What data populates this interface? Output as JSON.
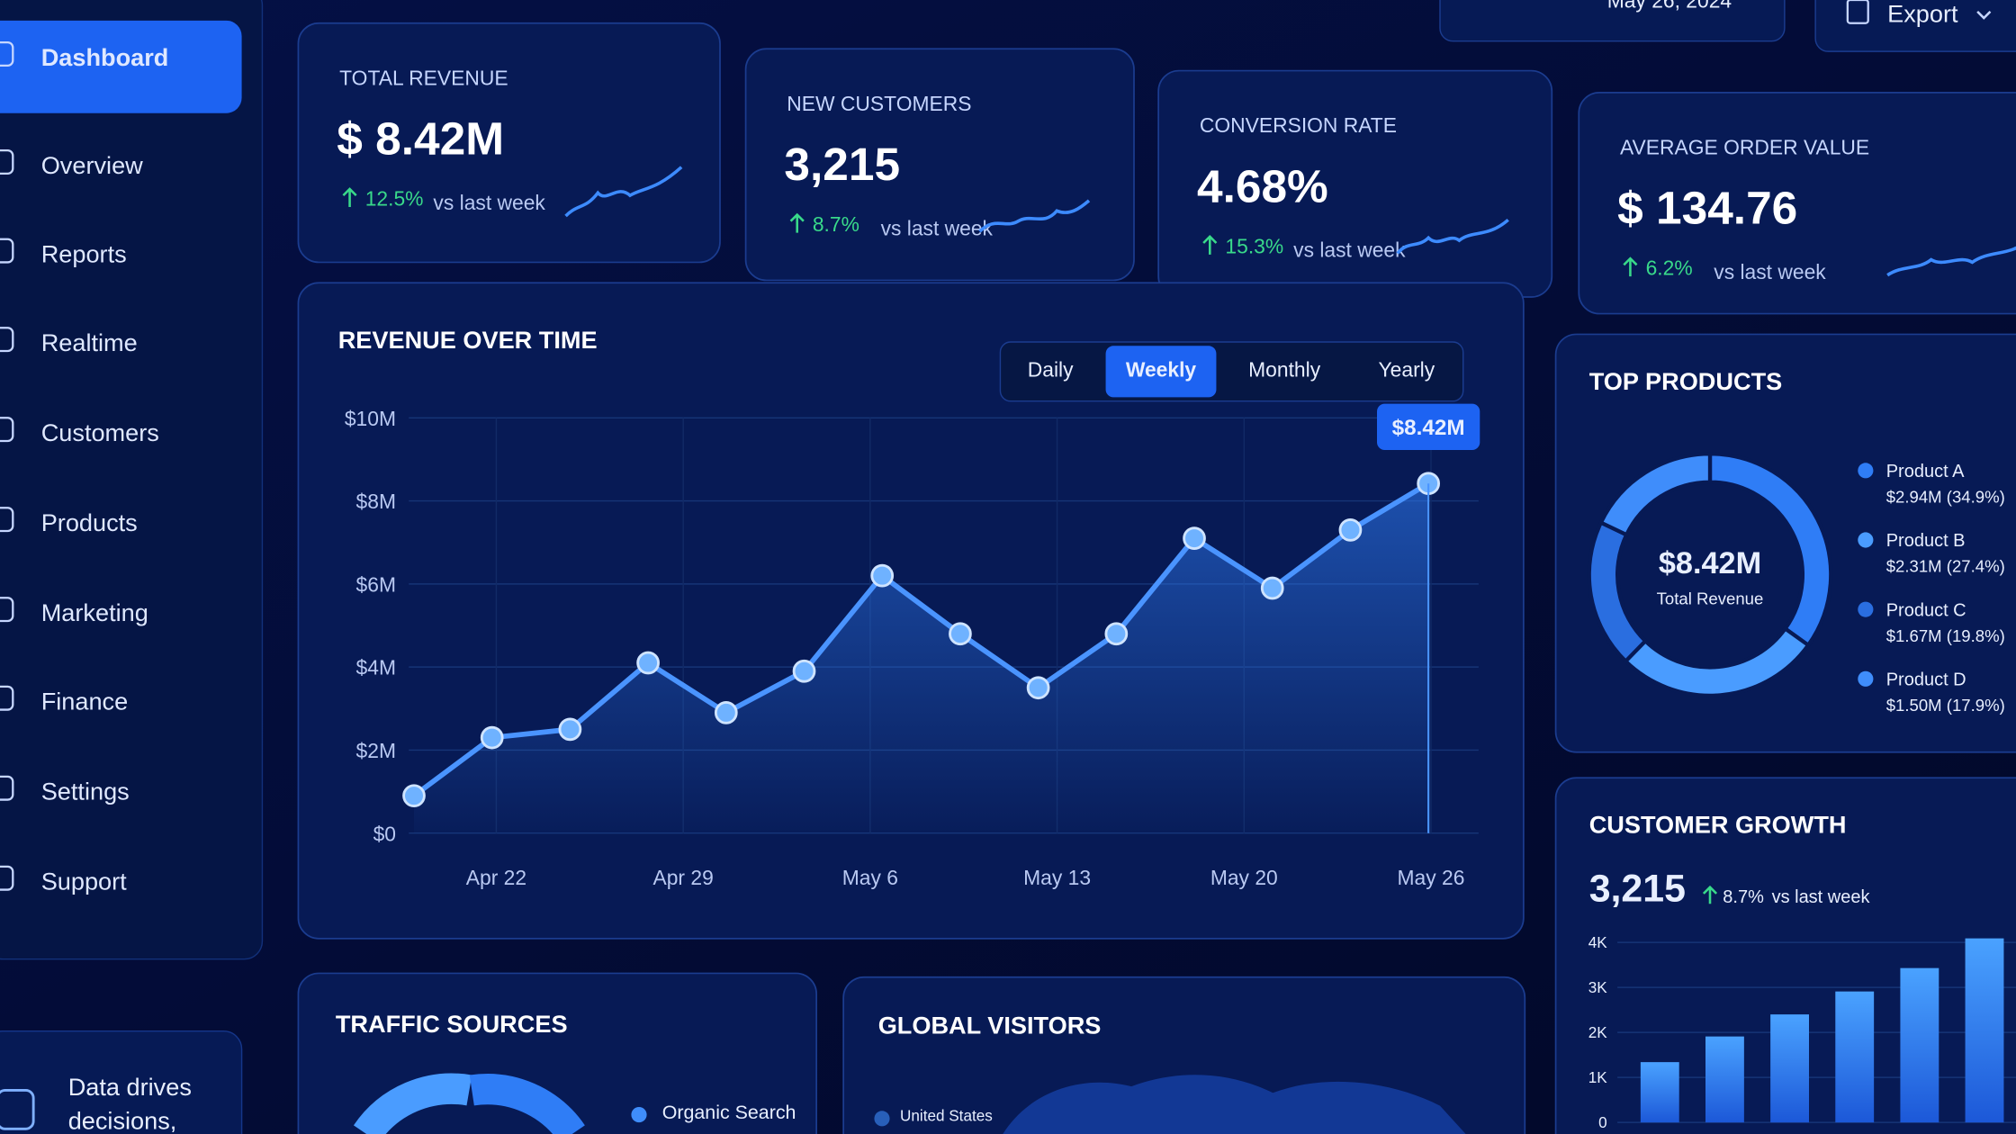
{
  "sidebar": {
    "items": [
      "Dashboard",
      "Overview",
      "Reports",
      "Realtime",
      "Customers",
      "Products",
      "Marketing",
      "Finance",
      "Settings",
      "Support"
    ],
    "active": "Dashboard",
    "promo": [
      "Data drives",
      "decisions,"
    ]
  },
  "header": {
    "date_range": "May 26, 2024",
    "export": "Export"
  },
  "kpis": [
    {
      "label": "TOTAL REVENUE",
      "value": "$ 8.42M",
      "change": "12.5%",
      "comparison": "vs last week"
    },
    {
      "label": "NEW CUSTOMERS",
      "value": "3,215",
      "change": "8.7%",
      "comparison": "vs last week"
    },
    {
      "label": "CONVERSION RATE",
      "value": "4.68%",
      "change": "15.3%",
      "comparison": "vs last week"
    },
    {
      "label": "AVERAGE ORDER VALUE",
      "value": "$ 134.76",
      "change": "6.2%",
      "comparison": "vs last week"
    }
  ],
  "revenue_chart": {
    "type": "line",
    "title": "REVENUE OVER TIME",
    "tabs": [
      "Daily",
      "Weekly",
      "Monthly",
      "Yearly"
    ],
    "active_tab": "Weekly",
    "x_labels": [
      "Apr 22",
      "Apr 29",
      "May 6",
      "May 13",
      "May 20",
      "May 26"
    ],
    "values": [
      900000,
      2300000,
      2500000,
      4100000,
      2900000,
      3900000,
      6200000,
      4800000,
      3500000,
      4800000,
      7100000,
      5900000,
      7300000,
      8420000
    ],
    "value_labels": [
      null,
      null,
      null,
      null,
      null,
      null,
      null,
      null,
      null,
      null,
      null,
      null,
      null,
      "$8.42M"
    ],
    "color": "#4a94ff",
    "ylim": [
      0,
      10000000
    ],
    "yticks": [
      {
        "value": 0,
        "label": "$0"
      },
      {
        "value": 2000000,
        "label": "$2M"
      },
      {
        "value": 4000000,
        "label": "$4M"
      },
      {
        "value": 6000000,
        "label": "$6M"
      },
      {
        "value": 8000000,
        "label": "$8M"
      },
      {
        "value": 10000000,
        "label": "$10M"
      }
    ],
    "grid": true
  },
  "top_products": {
    "type": "pie",
    "title": "TOP PRODUCTS",
    "center_value": "$8.42M",
    "center_label": "Total Revenue",
    "categories": [
      "Product A",
      "Product B",
      "Product C",
      "Product D"
    ],
    "values": [
      34.9,
      27.4,
      19.8,
      17.9
    ],
    "value_labels": [
      "$2.94M (34.9%)",
      "$2.31M (27.4%)",
      "$1.67M (19.8%)",
      "$1.50M (17.9%)"
    ],
    "colors": [
      "#2f7df6",
      "#4a9cff",
      "#2a6ee0",
      "#3f8dfb"
    ]
  },
  "customer_growth": {
    "type": "bar",
    "title": "CUSTOMER GROWTH",
    "value": "3,215",
    "change": "8.7%",
    "comparison": "vs last week",
    "values": [
      1340,
      1910,
      2400,
      2910,
      3430,
      4090
    ],
    "color": "#2f7df6",
    "ylim": [
      0,
      4000
    ],
    "yticks": [
      0,
      {
        "value": 1000,
        "label": "1K"
      },
      {
        "value": 2000,
        "label": "2K"
      },
      {
        "value": 3000,
        "label": "3K"
      },
      {
        "value": 4000,
        "label": "4K"
      }
    ]
  },
  "traffic_sources": {
    "title": "TRAFFIC SOURCES",
    "legend": [
      "Organic Search"
    ]
  },
  "global_visitors": {
    "title": "GLOBAL VISITORS",
    "legend": [
      "United States"
    ]
  }
}
